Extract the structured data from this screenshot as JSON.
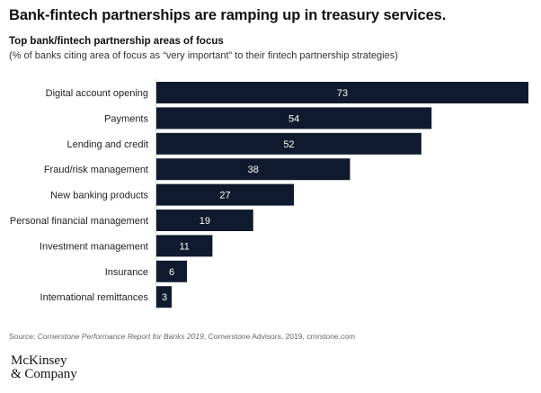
{
  "headline": "Bank-fintech partnerships are ramping up in treasury services.",
  "chart_data": {
    "type": "bar",
    "orientation": "horizontal",
    "title": "Top bank/fintech partnership areas of focus",
    "subtitle": "(% of banks citing area of focus as “very important” to their fintech partnership strategies)",
    "categories": [
      "Digital account opening",
      "Payments",
      "Lending and credit",
      "Fraud/risk management",
      "New banking products",
      "Personal financial management",
      "Investment management",
      "Insurance",
      "International remittances"
    ],
    "values": [
      73,
      54,
      52,
      38,
      27,
      19,
      11,
      6,
      3
    ],
    "xlim": [
      0,
      73
    ],
    "grid": false,
    "bar_color": "#0f1a2e",
    "label_color": "#ffffff"
  },
  "source": {
    "prefix": "Source: ",
    "italic": "Cornerstone Performance Report for Banks 2019",
    "rest": ", Cornerstone Advisors, 2019, crnrstone.com"
  },
  "logo": {
    "line1": "McKinsey",
    "line2": "& Company"
  }
}
